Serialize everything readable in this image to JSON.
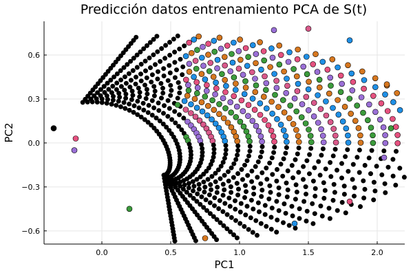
{
  "chart_data": {
    "type": "scatter",
    "title": "Predicción datos entrenamiento PCA de S(t)",
    "xlabel": "PC1",
    "ylabel": "PC2",
    "xlim": [
      -0.42,
      2.2
    ],
    "ylim": [
      -0.69,
      0.83
    ],
    "x_ticks": [
      "0.0",
      "0.5",
      "1.0",
      "1.5",
      "2.0"
    ],
    "x_tick_values": [
      0,
      0.5,
      1.0,
      1.5,
      2.0
    ],
    "y_ticks": [
      "−0.6",
      "−0.3",
      "0.0",
      "0.3",
      "0.6"
    ],
    "y_tick_values": [
      -0.6,
      -0.3,
      0.0,
      0.3,
      0.6
    ],
    "grid": true,
    "legend": "none",
    "point_colors": [
      "#1f8fe5",
      "#d6771f",
      "#3c9b3c",
      "#9a6fd6",
      "#d9598a",
      "#1f8fe5",
      "#d6771f",
      "#3c9b3c",
      "#9a6fd6",
      "#e5517f"
    ],
    "dense_color": "#000000",
    "series_outline_points": [
      {
        "x": -0.35,
        "y": 0.1
      },
      {
        "x": -0.19,
        "y": 0.03
      },
      {
        "x": 0.55,
        "y": 0.26
      },
      {
        "x": 1.25,
        "y": 0.77
      },
      {
        "x": 1.5,
        "y": 0.78
      },
      {
        "x": 1.8,
        "y": 0.7
      },
      {
        "x": 2.07,
        "y": 0.4
      },
      {
        "x": 2.1,
        "y": 0.1
      },
      {
        "x": 2.05,
        "y": -0.1
      },
      {
        "x": 1.8,
        "y": -0.4
      },
      {
        "x": 1.4,
        "y": -0.55
      },
      {
        "x": 0.75,
        "y": -0.65
      },
      {
        "x": 0.2,
        "y": -0.45
      },
      {
        "x": -0.2,
        "y": -0.05
      }
    ]
  }
}
